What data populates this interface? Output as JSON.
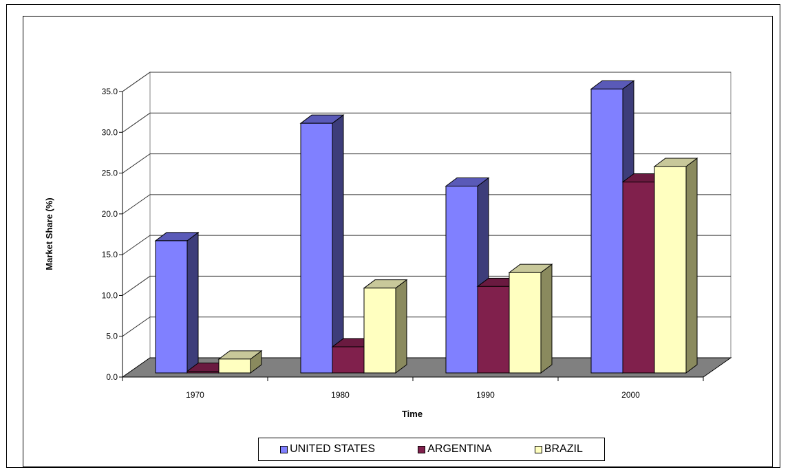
{
  "chart_data": {
    "type": "bar",
    "title": "",
    "xlabel": "Time",
    "ylabel": "Market Share (%)",
    "ylim": [
      0,
      35
    ],
    "y_ticks": [
      "0.0",
      "5.0",
      "10.0",
      "15.0",
      "20.0",
      "25.0",
      "30.0",
      "35.0"
    ],
    "categories": [
      "1970",
      "1980",
      "1990",
      "2000"
    ],
    "series": [
      {
        "name": "UNITED STATES",
        "values": [
          16.2,
          30.6,
          22.9,
          34.8
        ],
        "color": "#8080ff",
        "side_color": "#3d3d7a",
        "top_color": "#5a5ab8"
      },
      {
        "name": "ARGENTINA",
        "values": [
          0.2,
          3.2,
          10.6,
          23.4
        ],
        "color": "#80204c",
        "side_color": "#4d1230",
        "top_color": "#6a1a40"
      },
      {
        "name": "BRAZIL",
        "values": [
          1.7,
          10.4,
          12.3,
          25.3
        ],
        "color": "#ffffc0",
        "side_color": "#8a8a5e",
        "top_color": "#c8c89a"
      }
    ],
    "grid": true,
    "legend_position": "bottom",
    "floor_color": "#808080"
  }
}
